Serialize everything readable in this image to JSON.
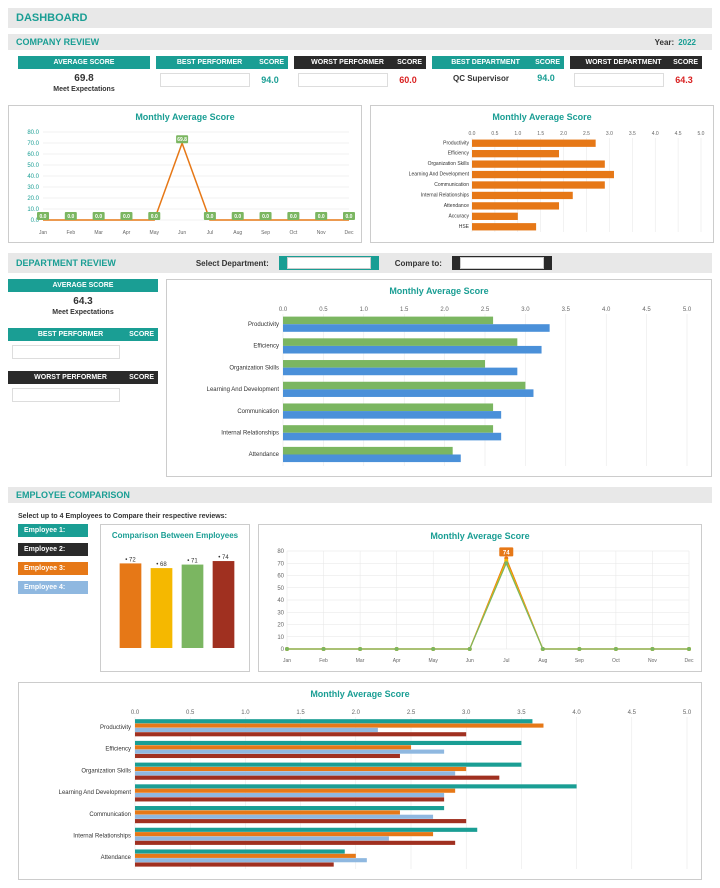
{
  "dashboard_title": "DASHBOARD",
  "company": {
    "title": "COMPANY REVIEW",
    "year_label": "Year:",
    "year": "2022",
    "avg": {
      "h": "AVERAGE SCORE",
      "v": "69.8",
      "t": "Meet Expectations"
    },
    "best_perf": {
      "h": "BEST PERFORMER",
      "sh": "SCORE",
      "v": "94.0"
    },
    "worst_perf": {
      "h": "WORST PERFORMER",
      "sh": "SCORE",
      "v": "60.0"
    },
    "best_dept": {
      "h": "BEST DEPARTMENT",
      "sh": "SCORE",
      "name": "QC Supervisor",
      "v": "94.0"
    },
    "worst_dept": {
      "h": "WORST DEPARTMENT",
      "sh": "SCORE",
      "v": "64.3"
    },
    "line_chart": {
      "title": "Monthly Average Score",
      "months": [
        "Jan",
        "Feb",
        "Mar",
        "Apr",
        "May",
        "Jun",
        "Jul",
        "Aug",
        "Sep",
        "Oct",
        "Nov",
        "Dec"
      ],
      "values": [
        0,
        0,
        0,
        0,
        0,
        69.8,
        0,
        0,
        0,
        0,
        0,
        0
      ],
      "ymax": 80,
      "ytick": 10,
      "line_color": "#e67817",
      "marker_color": "#7bb661"
    },
    "hbar_chart": {
      "title": "Monthly Average Score",
      "cats": [
        "Productivity",
        "Efficiency",
        "Organization Skills",
        "Learning And Development",
        "Communication",
        "Internal Relationships",
        "Attendance",
        "Accuracy",
        "HSE"
      ],
      "vals": [
        2.7,
        1.9,
        2.9,
        3.1,
        2.9,
        2.2,
        1.9,
        1.0,
        1.4
      ],
      "xmax": 5,
      "xtick": 0.5,
      "bar_color": "#e67817"
    }
  },
  "dept": {
    "title": "DEPARTMENT REVIEW",
    "sel_lbl": "Select Department:",
    "cmp_lbl": "Compare to:",
    "avg": {
      "h": "AVERAGE SCORE",
      "v": "64.3",
      "t": "Meet Expectations"
    },
    "best": {
      "h": "BEST PERFORMER",
      "sh": "SCORE"
    },
    "worst": {
      "h": "WORST PERFORMER",
      "sh": "SCORE"
    },
    "chart": {
      "title": "Monthly Average Score",
      "cats": [
        "Productivity",
        "Efficiency",
        "Organization Skills",
        "Learning And Development",
        "Communication",
        "Internal Relationships",
        "Attendance"
      ],
      "s1": [
        2.6,
        2.9,
        2.5,
        3.0,
        2.6,
        2.6,
        2.1
      ],
      "s2": [
        3.3,
        3.2,
        2.9,
        3.1,
        2.7,
        2.7,
        2.2
      ],
      "c1": "#7bb661",
      "c2": "#4a90d9",
      "xmax": 5,
      "xtick": 0.5
    }
  },
  "emp": {
    "title": "EMPLOYEE COMPARISON",
    "instr": "Select up to 4 Employees to Compare their respective reviews:",
    "labels": [
      "Employee 1:",
      "Employee 2:",
      "Employee 3:",
      "Employee 4:"
    ],
    "label_colors": [
      "#1a9e94",
      "#2a2a2a",
      "#e67817",
      "#8fb8e0"
    ],
    "bar_chart": {
      "title": "Comparison Between Employees",
      "vals": [
        72,
        68,
        71,
        74
      ],
      "colors": [
        "#e67817",
        "#f5b800",
        "#7bb661",
        "#a03020"
      ],
      "ymax": 80
    },
    "line_chart": {
      "title": "Monthly Average Score",
      "months": [
        "Jan",
        "Feb",
        "Mar",
        "Apr",
        "May",
        "Jun",
        "Jul",
        "Aug",
        "Sep",
        "Oct",
        "Nov",
        "Dec"
      ],
      "series": [
        {
          "c": "#e67817",
          "v": [
            0,
            0,
            0,
            0,
            0,
            0,
            74,
            0,
            0,
            0,
            0,
            0
          ]
        },
        {
          "c": "#f5b800",
          "v": [
            0,
            0,
            0,
            0,
            0,
            0,
            72,
            0,
            0,
            0,
            0,
            0
          ]
        },
        {
          "c": "#7bb661",
          "v": [
            0,
            0,
            0,
            0,
            0,
            0,
            70,
            0,
            0,
            0,
            0,
            0
          ]
        }
      ],
      "ymax": 80,
      "ytick": 10
    },
    "hbar_chart": {
      "title": "Monthly Average Score",
      "cats": [
        "Productivity",
        "Efficiency",
        "Organization Skills",
        "Learning And Development",
        "Communication",
        "Internal Relationships",
        "Attendance"
      ],
      "series": [
        {
          "c": "#1a9e94",
          "v": [
            3.6,
            3.5,
            3.5,
            4.0,
            2.8,
            3.1,
            1.9
          ]
        },
        {
          "c": "#e67817",
          "v": [
            3.7,
            2.5,
            3.0,
            2.9,
            2.4,
            2.7,
            2.0
          ]
        },
        {
          "c": "#8fb8e0",
          "v": [
            2.2,
            2.8,
            2.9,
            2.8,
            2.7,
            2.3,
            2.1
          ]
        },
        {
          "c": "#a03020",
          "v": [
            3.0,
            2.4,
            3.3,
            2.8,
            3.0,
            2.9,
            1.8
          ]
        }
      ],
      "xmax": 5,
      "xtick": 0.5
    }
  },
  "colors": {
    "teal": "#1a9e94",
    "red": "#d92020",
    "grid": "#ddd",
    "axis": "#888"
  }
}
